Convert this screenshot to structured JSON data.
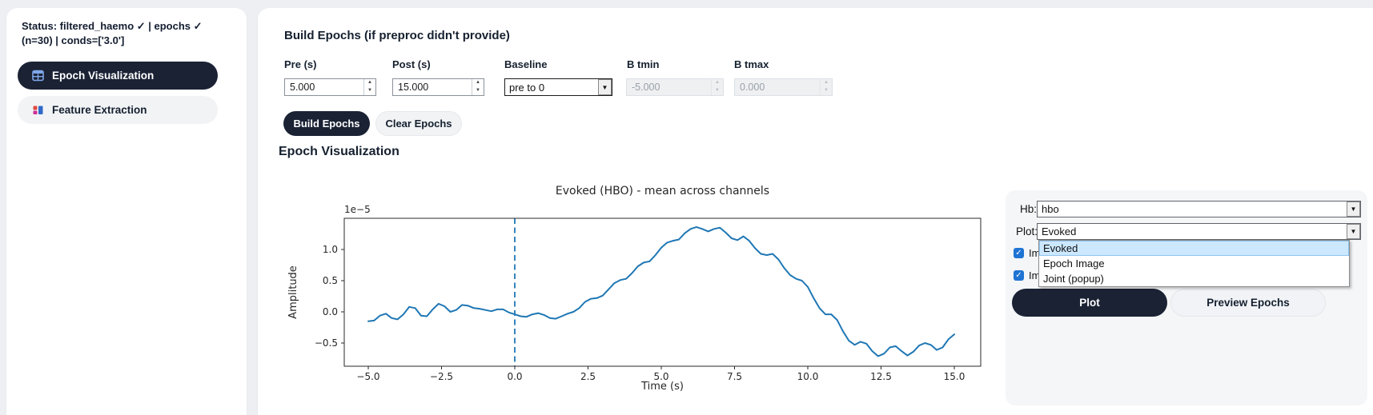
{
  "sidebar": {
    "status": "Status: filtered_haemo ✓ | epochs ✓ (n=30) | conds=['3.0']",
    "items": [
      {
        "label": "Epoch Visualization"
      },
      {
        "label": "Feature Extraction"
      }
    ]
  },
  "build": {
    "heading": "Build Epochs (if preproc didn't provide)",
    "pre_label": "Pre (s)",
    "pre_value": "5.000",
    "post_label": "Post (s)",
    "post_value": "15.000",
    "baseline_label": "Baseline",
    "baseline_value": "pre to 0",
    "btmin_label": "B tmin",
    "btmin_value": "-5.000",
    "btmax_label": "B tmax",
    "btmax_value": "0.000",
    "build_button": "Build Epochs",
    "clear_button": "Clear Epochs"
  },
  "viz": {
    "heading": "Epoch Visualization",
    "hb_label": "Hb:",
    "hb_value": "hbo",
    "plot_label": "Plot:",
    "plot_value": "Evoked",
    "plot_options": [
      "Evoked",
      "Epoch Image",
      "Joint (popup)"
    ],
    "selected_option": "Evoked",
    "checkbox1_label": "Ima",
    "checkbox2_label": "Ima",
    "checkbox1_checked": true,
    "checkbox2_checked": true,
    "plot_button": "Plot",
    "preview_button": "Preview Epochs"
  },
  "colors": {
    "accent_dark": "#1a2234",
    "chart_line": "#1f77b4",
    "checkbox_blue": "#1f74d4",
    "dropdown_highlight": "#cce8ff",
    "page_background": "#edeff2"
  },
  "chart_data": {
    "type": "line",
    "title": "Evoked (HBO) - mean across channels",
    "xlabel": "Time (s)",
    "ylabel": "Amplitude",
    "offset_text": "1e−5",
    "y_units": "1e-5",
    "x_ticks": [
      -5.0,
      -2.5,
      0.0,
      2.5,
      5.0,
      7.5,
      10.0,
      12.5,
      15.0
    ],
    "y_ticks": [
      1.0,
      0.5,
      0.0,
      -0.5
    ],
    "xlim": [
      -6,
      16
    ],
    "ylim": [
      -0.87,
      1.5
    ],
    "vline_x": 0.0,
    "vline_style": "dashed",
    "grid": false,
    "legend": false,
    "line_color": "#1f77b4",
    "series": [
      {
        "name": "mean across channels",
        "points": [
          [
            -5.0,
            -0.15
          ],
          [
            -4.8,
            -0.14
          ],
          [
            -4.6,
            -0.06
          ],
          [
            -4.4,
            -0.03
          ],
          [
            -4.2,
            -0.1
          ],
          [
            -4.0,
            -0.12
          ],
          [
            -3.8,
            -0.04
          ],
          [
            -3.6,
            0.08
          ],
          [
            -3.4,
            0.06
          ],
          [
            -3.2,
            -0.06
          ],
          [
            -3.0,
            -0.07
          ],
          [
            -2.8,
            0.04
          ],
          [
            -2.6,
            0.13
          ],
          [
            -2.4,
            0.09
          ],
          [
            -2.2,
            0.0
          ],
          [
            -2.0,
            0.03
          ],
          [
            -1.8,
            0.11
          ],
          [
            -1.6,
            0.1
          ],
          [
            -1.4,
            0.06
          ],
          [
            -1.2,
            0.05
          ],
          [
            -1.0,
            0.03
          ],
          [
            -0.8,
            0.01
          ],
          [
            -0.6,
            0.04
          ],
          [
            -0.4,
            0.04
          ],
          [
            -0.2,
            -0.01
          ],
          [
            0.0,
            -0.04
          ],
          [
            0.2,
            -0.07
          ],
          [
            0.4,
            -0.08
          ],
          [
            0.6,
            -0.04
          ],
          [
            0.8,
            -0.02
          ],
          [
            1.0,
            -0.05
          ],
          [
            1.2,
            -0.1
          ],
          [
            1.4,
            -0.11
          ],
          [
            1.6,
            -0.07
          ],
          [
            1.8,
            -0.03
          ],
          [
            2.0,
            0.0
          ],
          [
            2.2,
            0.06
          ],
          [
            2.4,
            0.16
          ],
          [
            2.6,
            0.21
          ],
          [
            2.8,
            0.22
          ],
          [
            3.0,
            0.26
          ],
          [
            3.2,
            0.36
          ],
          [
            3.4,
            0.46
          ],
          [
            3.6,
            0.51
          ],
          [
            3.8,
            0.53
          ],
          [
            4.0,
            0.62
          ],
          [
            4.2,
            0.73
          ],
          [
            4.4,
            0.79
          ],
          [
            4.6,
            0.81
          ],
          [
            4.8,
            0.91
          ],
          [
            5.0,
            1.03
          ],
          [
            5.2,
            1.11
          ],
          [
            5.4,
            1.14
          ],
          [
            5.6,
            1.16
          ],
          [
            5.8,
            1.26
          ],
          [
            6.0,
            1.33
          ],
          [
            6.2,
            1.36
          ],
          [
            6.4,
            1.33
          ],
          [
            6.6,
            1.29
          ],
          [
            6.8,
            1.33
          ],
          [
            7.0,
            1.35
          ],
          [
            7.2,
            1.27
          ],
          [
            7.4,
            1.18
          ],
          [
            7.6,
            1.15
          ],
          [
            7.8,
            1.21
          ],
          [
            8.0,
            1.14
          ],
          [
            8.2,
            1.02
          ],
          [
            8.4,
            0.93
          ],
          [
            8.6,
            0.91
          ],
          [
            8.8,
            0.93
          ],
          [
            9.0,
            0.84
          ],
          [
            9.2,
            0.7
          ],
          [
            9.4,
            0.59
          ],
          [
            9.6,
            0.53
          ],
          [
            9.8,
            0.5
          ],
          [
            10.0,
            0.4
          ],
          [
            10.2,
            0.22
          ],
          [
            10.4,
            0.06
          ],
          [
            10.6,
            -0.04
          ],
          [
            10.8,
            -0.04
          ],
          [
            11.0,
            -0.13
          ],
          [
            11.2,
            -0.31
          ],
          [
            11.4,
            -0.46
          ],
          [
            11.6,
            -0.53
          ],
          [
            11.8,
            -0.48
          ],
          [
            12.0,
            -0.51
          ],
          [
            12.2,
            -0.63
          ],
          [
            12.4,
            -0.71
          ],
          [
            12.6,
            -0.67
          ],
          [
            12.8,
            -0.57
          ],
          [
            13.0,
            -0.55
          ],
          [
            13.2,
            -0.63
          ],
          [
            13.4,
            -0.7
          ],
          [
            13.6,
            -0.64
          ],
          [
            13.8,
            -0.54
          ],
          [
            14.0,
            -0.5
          ],
          [
            14.2,
            -0.53
          ],
          [
            14.4,
            -0.61
          ],
          [
            14.6,
            -0.57
          ],
          [
            14.8,
            -0.44
          ],
          [
            15.0,
            -0.36
          ]
        ]
      }
    ]
  }
}
